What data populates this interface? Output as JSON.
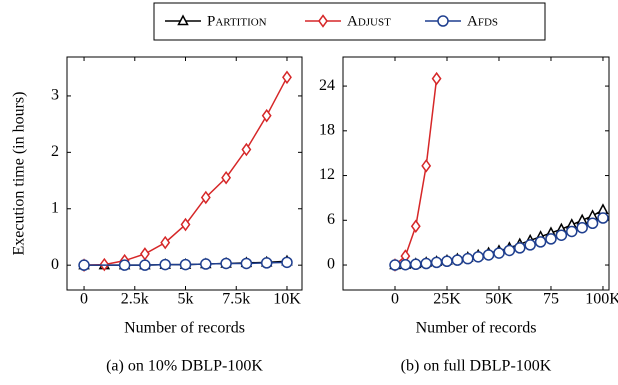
{
  "chart_data": [
    {
      "type": "line",
      "x_label": "Number of records",
      "y_label": "Execution time (in hours)",
      "caption": "(a) on 10% DBLP-100K",
      "xlim": [
        -840,
        10740
      ],
      "ylim": [
        -0.44,
        3.69
      ],
      "xticks": [
        0,
        {
          "value": 2500,
          "label": "2.5k"
        },
        {
          "value": 5000,
          "label": "5k"
        },
        {
          "value": 7500,
          "label": "7.5k"
        },
        {
          "value": 10000,
          "label": "10K"
        }
      ],
      "yticks": [
        0,
        1,
        2,
        3
      ],
      "grid": false,
      "series": [
        {
          "name": "Partition",
          "color": "#000000",
          "marker": "triangle",
          "x": [
            0,
            1000,
            2000,
            3000,
            4000,
            5000,
            6000,
            7000,
            8000,
            9000,
            10000
          ],
          "values": [
            0,
            0,
            0,
            0,
            0.01,
            0.01,
            0.02,
            0.03,
            0.04,
            0.05,
            0.07
          ]
        },
        {
          "name": "Adjust",
          "color": "#d62728",
          "marker": "diamond",
          "x": [
            0,
            1000,
            2000,
            3000,
            4000,
            5000,
            6000,
            7000,
            8000,
            9000,
            10000
          ],
          "values": [
            0,
            0.01,
            0.08,
            0.2,
            0.4,
            0.72,
            1.2,
            1.55,
            2.05,
            2.65,
            3.33
          ]
        },
        {
          "name": "Afds",
          "color": "#1f3f8f",
          "marker": "circle",
          "x": [
            0,
            2000,
            3000,
            4000,
            5000,
            6000,
            7000,
            8000,
            9000,
            10000
          ],
          "values": [
            0,
            0,
            0,
            0.01,
            0.01,
            0.02,
            0.03,
            0.03,
            0.04,
            0.05
          ]
        }
      ]
    },
    {
      "type": "line",
      "x_label": "Number of records",
      "caption": "(b) on full DBLP-100K",
      "xlim": [
        -25000,
        102900
      ],
      "ylim": [
        -3.35,
        27.9
      ],
      "xticks": [
        0,
        {
          "value": 25000,
          "label": "25K"
        },
        {
          "value": 50000,
          "label": "50K"
        },
        {
          "value": 75000,
          "label": "75"
        },
        {
          "value": 100000,
          "label": "100K"
        }
      ],
      "yticks": [
        0,
        6,
        12,
        18,
        24
      ],
      "grid": false,
      "series": [
        {
          "name": "Partition",
          "color": "#000000",
          "marker": "triangle",
          "x": [
            0,
            5000,
            10000,
            15000,
            20000,
            25000,
            30000,
            35000,
            40000,
            45000,
            50000,
            55000,
            60000,
            65000,
            70000,
            75000,
            80000,
            85000,
            90000,
            95000,
            100000
          ],
          "values": [
            0,
            0.05,
            0.15,
            0.3,
            0.45,
            0.6,
            0.8,
            1.0,
            1.3,
            1.6,
            1.9,
            2.3,
            2.8,
            3.3,
            3.8,
            4.3,
            4.8,
            5.4,
            6.0,
            6.6,
            7.4
          ]
        },
        {
          "name": "Adjust",
          "color": "#d62728",
          "marker": "diamond",
          "x": [
            0,
            5000,
            10000,
            15000,
            20000
          ],
          "values": [
            0,
            1.2,
            5.2,
            13.3,
            25.0
          ]
        },
        {
          "name": "Afds",
          "color": "#1f3f8f",
          "marker": "circle",
          "x": [
            0,
            5000,
            10000,
            15000,
            20000,
            25000,
            30000,
            35000,
            40000,
            45000,
            50000,
            55000,
            60000,
            65000,
            70000,
            75000,
            80000,
            85000,
            90000,
            95000,
            100000
          ],
          "values": [
            0,
            0.04,
            0.1,
            0.2,
            0.35,
            0.5,
            0.65,
            0.85,
            1.1,
            1.35,
            1.6,
            1.95,
            2.3,
            2.7,
            3.1,
            3.5,
            4.0,
            4.5,
            5.0,
            5.6,
            6.3
          ]
        }
      ]
    }
  ]
}
